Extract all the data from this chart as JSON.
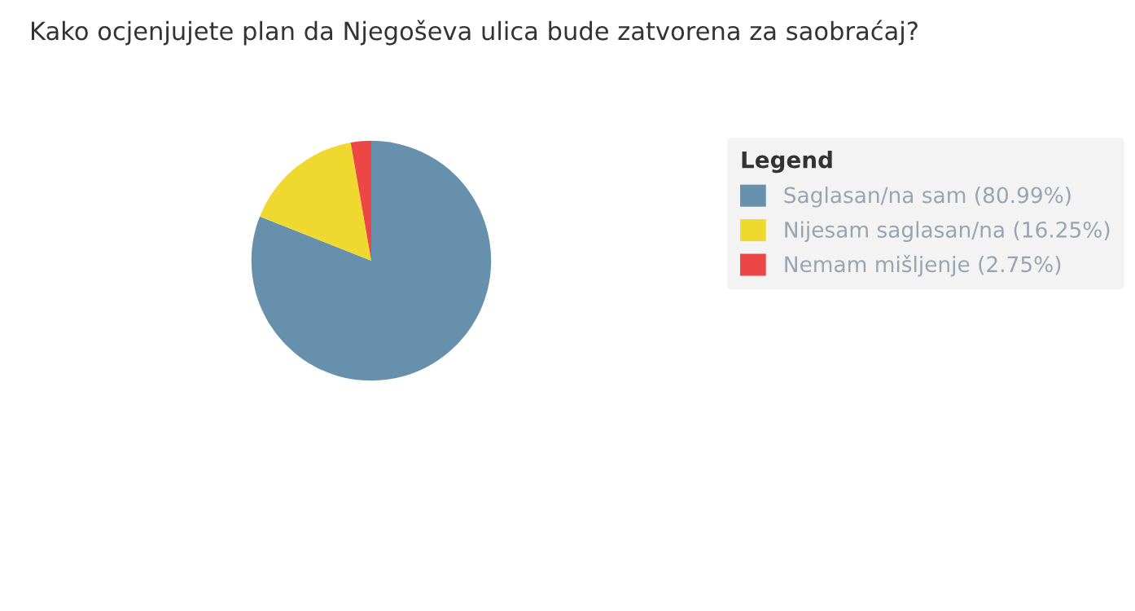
{
  "chart_data": {
    "type": "pie",
    "title": "Kako ocjenjujete plan da Njegoševa ulica bude zatvorena za saobraćaj?",
    "legend_title": "Legend",
    "categories": [
      "Saglasan/na sam (80.99%)",
      "Nijesam saglasan/na (16.25%)",
      "Nemam mišljenje (2.75%)"
    ],
    "values": [
      80.99,
      16.25,
      2.75
    ],
    "colors": [
      "#6690ab",
      "#f0d92e",
      "#ec4646"
    ],
    "legend": "right"
  }
}
